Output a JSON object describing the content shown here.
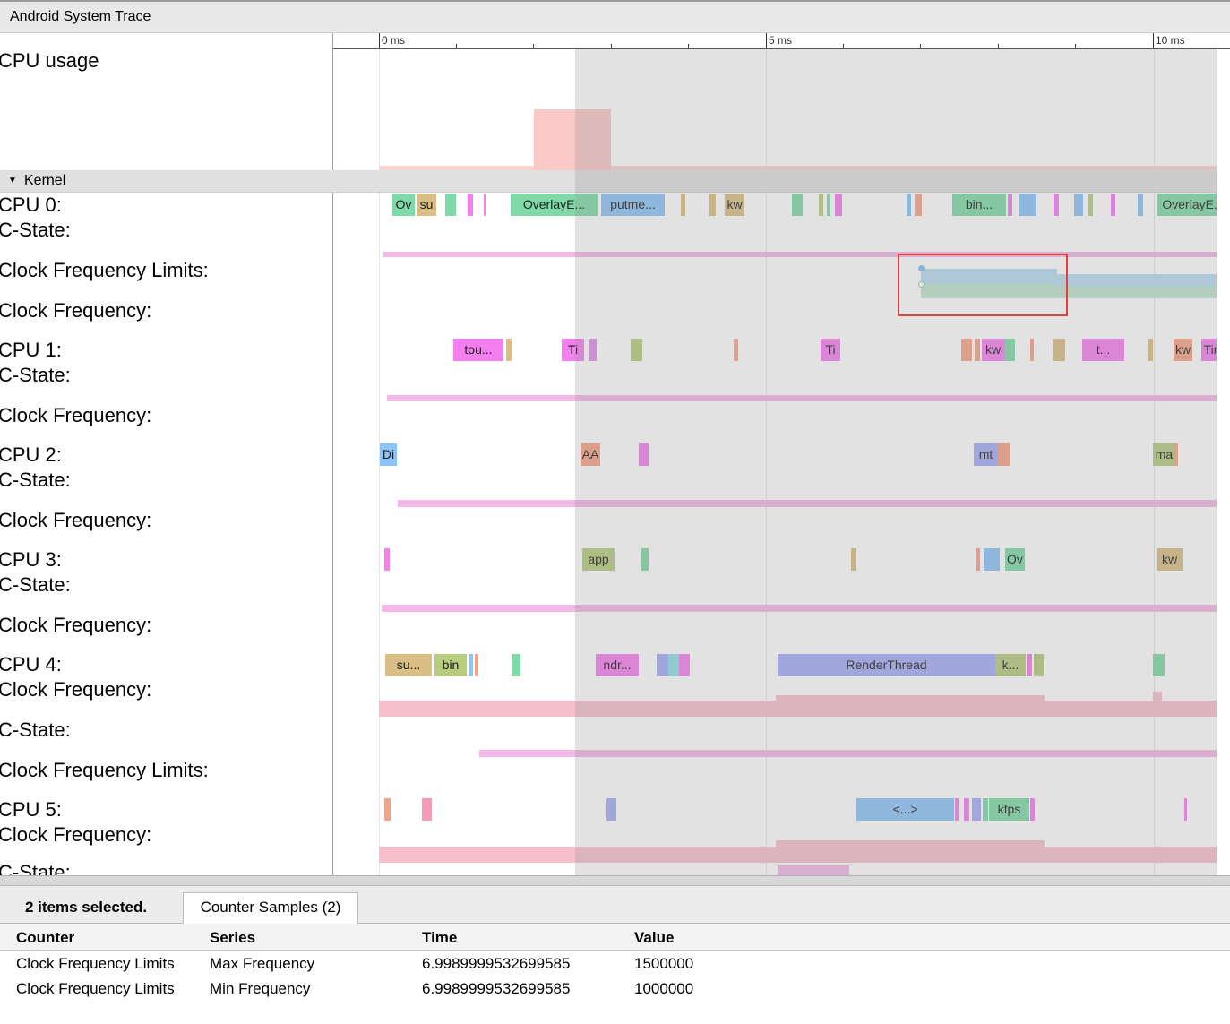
{
  "window": {
    "title": "Android System Trace"
  },
  "ruler": {
    "ticks": [
      "0 ms",
      "5 ms",
      "10 ms"
    ]
  },
  "sections": {
    "cpu_usage": "CPU usage",
    "kernel": "Kernel"
  },
  "track_labels": [
    "CPU 0:",
    "C-State:",
    "Clock Frequency Limits:",
    "Clock Frequency:",
    "CPU 1:",
    "C-State:",
    "Clock Frequency:",
    "CPU 2:",
    "C-State:",
    "Clock Frequency:",
    "CPU 3:",
    "C-State:",
    "Clock Frequency:",
    "CPU 4:",
    "Clock Frequency:",
    "C-State:",
    "Clock Frequency Limits:",
    "CPU 5:",
    "Clock Frequency:",
    "C-State:"
  ],
  "slices": {
    "cpu0": [
      "Ov",
      "su",
      "OverlayE...",
      "putme...",
      "kw",
      "bin...",
      "OverlayE..."
    ],
    "cpu1": [
      "tou...",
      "Ti",
      "Ti",
      "kw",
      "t...",
      "kw",
      "Tim"
    ],
    "cpu2": [
      "Di",
      "AA",
      "mt",
      "ma"
    ],
    "cpu3": [
      "app",
      "Ov",
      "kw"
    ],
    "cpu4": [
      "su...",
      "bin",
      "ndr...",
      "RenderThread",
      "k..."
    ],
    "cpu5": [
      "<...>",
      "kfps"
    ]
  },
  "colors": {
    "green": "#7fd9a8",
    "tan": "#d9be86",
    "magenta": "#f57ff0",
    "blue": "#8cc4f5",
    "periwinkle": "#a6adf7",
    "salmon": "#f5a388",
    "olive": "#b8cc7f",
    "pink": "#f7a1bd",
    "lightpink": "#f4b8e8",
    "selection_outline": "#ff2020"
  },
  "details": {
    "selection_summary": "2 items selected.",
    "tab_label": "Counter Samples (2)",
    "columns": [
      "Counter",
      "Series",
      "Time",
      "Value"
    ],
    "rows": [
      [
        "Clock Frequency Limits",
        "Max Frequency",
        "6.9989999532699585",
        "1500000"
      ],
      [
        "Clock Frequency Limits",
        "Min Frequency",
        "6.9989999532699585",
        "1000000"
      ]
    ]
  }
}
